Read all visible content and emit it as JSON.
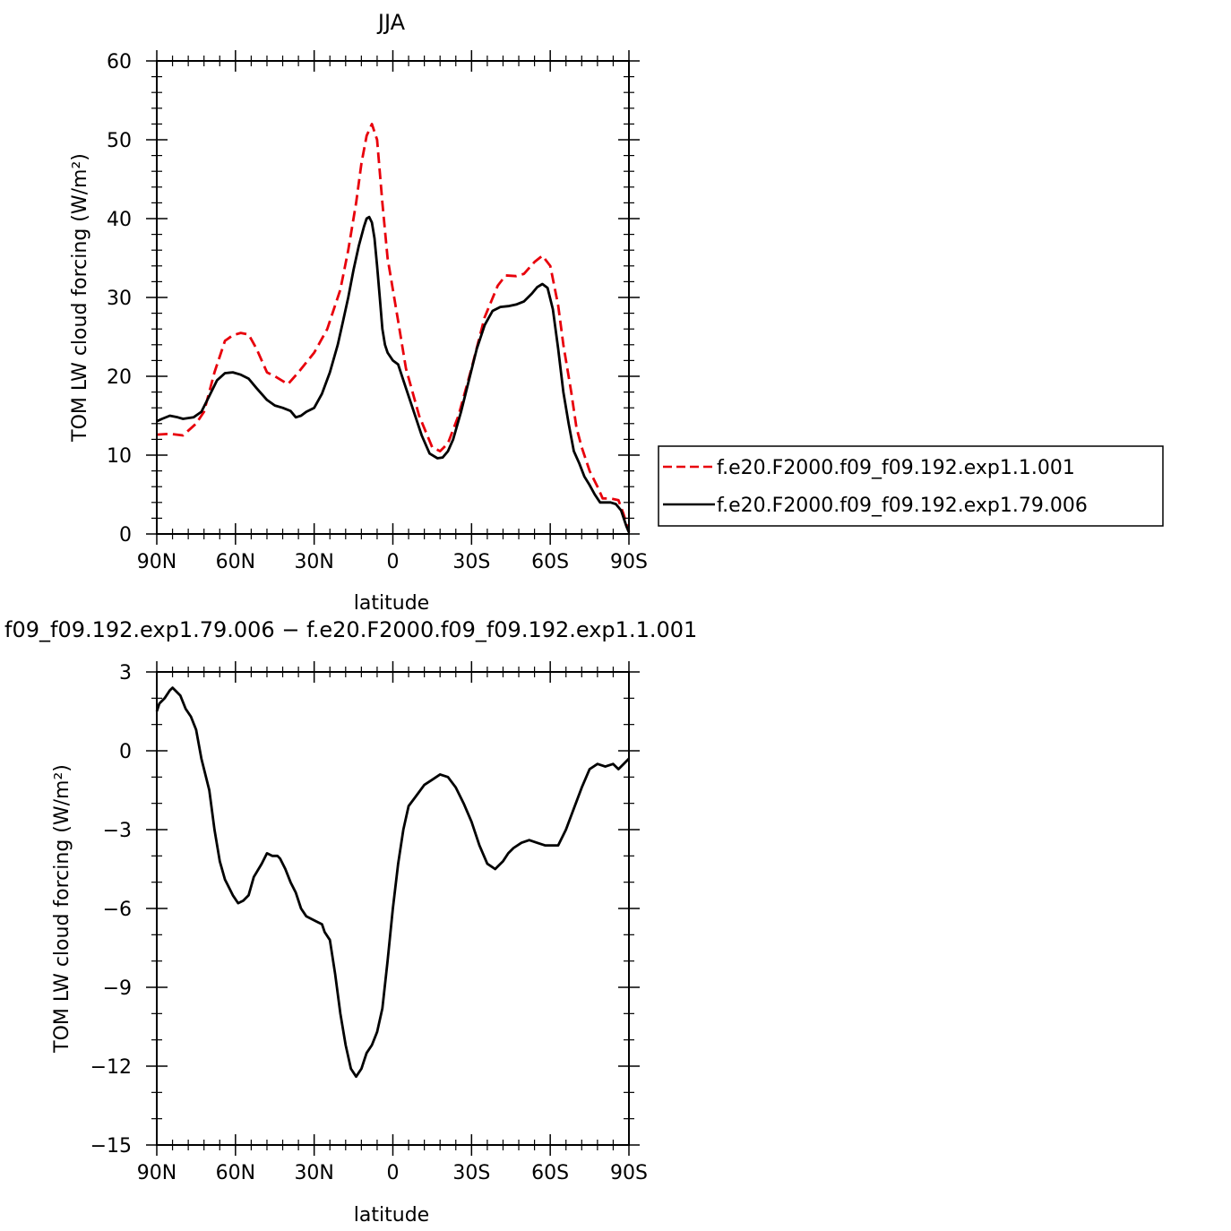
{
  "chart_data": [
    {
      "type": "line",
      "title": "JJA",
      "xlabel": "latitude",
      "ylabel": "TOM LW cloud forcing (W/m²)",
      "xlim": [
        90,
        -90
      ],
      "ylim": [
        0,
        60
      ],
      "xticks": [
        90,
        60,
        30,
        0,
        -30,
        -60,
        -90
      ],
      "xtick_labels": [
        "90N",
        "60N",
        "30N",
        "0",
        "30S",
        "60S",
        "90S"
      ],
      "yticks": [
        0,
        10,
        20,
        30,
        40,
        50,
        60
      ],
      "ytick_labels": [
        "0",
        "10",
        "20",
        "30",
        "40",
        "50",
        "60"
      ],
      "legend_position": "right",
      "series": [
        {
          "name": "f.e20.F2000.f09_f09.192.exp1.1.001",
          "color": "#e8000b",
          "dash": "dashed",
          "x": [
            90,
            85,
            80,
            75,
            72,
            68,
            64,
            61,
            58,
            55,
            52,
            48,
            45,
            40,
            36,
            30,
            25,
            20,
            17,
            14,
            12,
            10,
            8,
            6,
            4,
            2,
            0,
            -2,
            -5,
            -10,
            -15,
            -18,
            -21,
            -25,
            -30,
            -35,
            -40,
            -43,
            -47,
            -50,
            -54,
            -57,
            -60,
            -63,
            -65,
            -68,
            -70,
            -72,
            -75,
            -78,
            -80,
            -83,
            -86,
            -88,
            -90
          ],
          "y": [
            12.6,
            12.7,
            12.5,
            14.0,
            15.5,
            20.5,
            24.5,
            25.2,
            25.5,
            25.3,
            23.5,
            20.5,
            20.0,
            19.0,
            20.5,
            23.0,
            26.0,
            31.0,
            36.0,
            42.0,
            47.0,
            50.5,
            52.0,
            50.0,
            42.0,
            35.0,
            31.0,
            27.0,
            21.0,
            15.0,
            11.0,
            10.5,
            11.5,
            15.0,
            21.0,
            27.5,
            31.5,
            32.8,
            32.7,
            33.0,
            34.5,
            35.3,
            34.0,
            29.0,
            24.0,
            18.0,
            13.5,
            11.0,
            8.0,
            6.0,
            4.5,
            4.5,
            4.3,
            2.5,
            0.3
          ]
        },
        {
          "name": "f.e20.F2000.f09_f09.192.exp1.79.006",
          "color": "#000000",
          "dash": "solid",
          "x": [
            90,
            88,
            85,
            82,
            80,
            76,
            73,
            70,
            67,
            64,
            61,
            58,
            55,
            52,
            48,
            45,
            42,
            39,
            37,
            35,
            33,
            30,
            27,
            24,
            21,
            19,
            17,
            15,
            13,
            11,
            10,
            9,
            8,
            7,
            6,
            5,
            4,
            3,
            2,
            0,
            -2,
            -5,
            -8,
            -11,
            -14,
            -17,
            -19,
            -21,
            -23,
            -26,
            -29,
            -32,
            -35,
            -38,
            -41,
            -44,
            -47,
            -50,
            -53,
            -55,
            -57,
            -59,
            -61,
            -63,
            -65,
            -67,
            -69,
            -71,
            -73,
            -75,
            -77,
            -79,
            -81,
            -83,
            -85,
            -87,
            -89,
            -90
          ],
          "y": [
            14.3,
            14.6,
            15.0,
            14.8,
            14.6,
            14.8,
            15.5,
            17.5,
            19.5,
            20.4,
            20.5,
            20.2,
            19.7,
            18.5,
            17.0,
            16.3,
            16.0,
            15.6,
            14.8,
            15.0,
            15.5,
            16.0,
            17.8,
            20.5,
            24.0,
            27.0,
            30.0,
            33.5,
            36.5,
            39.0,
            40.0,
            40.2,
            39.5,
            37.5,
            34.0,
            30.0,
            26.0,
            24.0,
            23.0,
            22.0,
            21.5,
            18.5,
            15.5,
            12.5,
            10.2,
            9.6,
            9.7,
            10.5,
            12.0,
            15.5,
            19.5,
            23.5,
            26.5,
            28.3,
            28.8,
            28.9,
            29.1,
            29.5,
            30.5,
            31.3,
            31.7,
            31.2,
            28.5,
            23.5,
            18.0,
            14.0,
            10.5,
            9.0,
            7.3,
            6.2,
            5.0,
            4.0,
            4.0,
            4.0,
            3.8,
            3.0,
            1.0,
            0.2
          ]
        }
      ]
    },
    {
      "type": "line",
      "title": "f09_f09.192.exp1.79.006 − f.e20.F2000.f09_f09.192.exp1.1.001",
      "xlabel": "latitude",
      "ylabel": "TOM LW cloud forcing (W/m²)",
      "xlim": [
        90,
        -90
      ],
      "ylim": [
        -15,
        3
      ],
      "xticks": [
        90,
        60,
        30,
        0,
        -30,
        -60,
        -90
      ],
      "xtick_labels": [
        "90N",
        "60N",
        "30N",
        "0",
        "30S",
        "60S",
        "90S"
      ],
      "yticks": [
        3,
        0,
        -3,
        -6,
        -9,
        -12,
        -15
      ],
      "ytick_labels": [
        "3",
        "0",
        "−3",
        "−6",
        "−9",
        "−12",
        "−15"
      ],
      "series": [
        {
          "color": "#000000",
          "dash": "solid",
          "x": [
            90,
            89,
            87,
            85,
            84,
            83,
            81,
            79,
            77,
            75,
            73,
            70,
            68,
            66,
            64,
            63,
            61,
            59,
            57,
            55,
            53,
            50,
            48,
            46,
            44,
            43,
            41,
            39,
            37,
            35,
            33,
            31,
            29,
            27,
            26,
            24,
            22,
            20,
            18,
            16,
            14,
            12,
            11,
            10,
            8,
            6,
            4,
            2,
            0,
            -2,
            -4,
            -6,
            -9,
            -12,
            -15,
            -18,
            -21,
            -24,
            -27,
            -30,
            -33,
            -36,
            -39,
            -42,
            -44,
            -46,
            -49,
            -52,
            -55,
            -58,
            -61,
            -63,
            -66,
            -69,
            -72,
            -75,
            -78,
            -81,
            -84,
            -86,
            -88,
            -90
          ],
          "y": [
            1.5,
            1.8,
            2.0,
            2.3,
            2.4,
            2.3,
            2.1,
            1.6,
            1.3,
            0.8,
            -0.3,
            -1.5,
            -3.0,
            -4.2,
            -4.9,
            -5.1,
            -5.5,
            -5.8,
            -5.7,
            -5.5,
            -4.8,
            -4.3,
            -3.9,
            -4.0,
            -4.0,
            -4.1,
            -4.5,
            -5.0,
            -5.4,
            -6.0,
            -6.3,
            -6.4,
            -6.5,
            -6.6,
            -6.9,
            -7.2,
            -8.5,
            -10.0,
            -11.2,
            -12.1,
            -12.4,
            -12.1,
            -11.8,
            -11.5,
            -11.2,
            -10.7,
            -9.8,
            -8.0,
            -6.0,
            -4.3,
            -3.0,
            -2.1,
            -1.7,
            -1.3,
            -1.1,
            -0.9,
            -1.0,
            -1.4,
            -2.0,
            -2.7,
            -3.6,
            -4.3,
            -4.5,
            -4.2,
            -3.9,
            -3.7,
            -3.5,
            -3.4,
            -3.5,
            -3.6,
            -3.6,
            -3.6,
            -3.0,
            -2.2,
            -1.4,
            -0.7,
            -0.5,
            -0.6,
            -0.5,
            -0.7,
            -0.5,
            -0.3
          ]
        }
      ]
    }
  ]
}
